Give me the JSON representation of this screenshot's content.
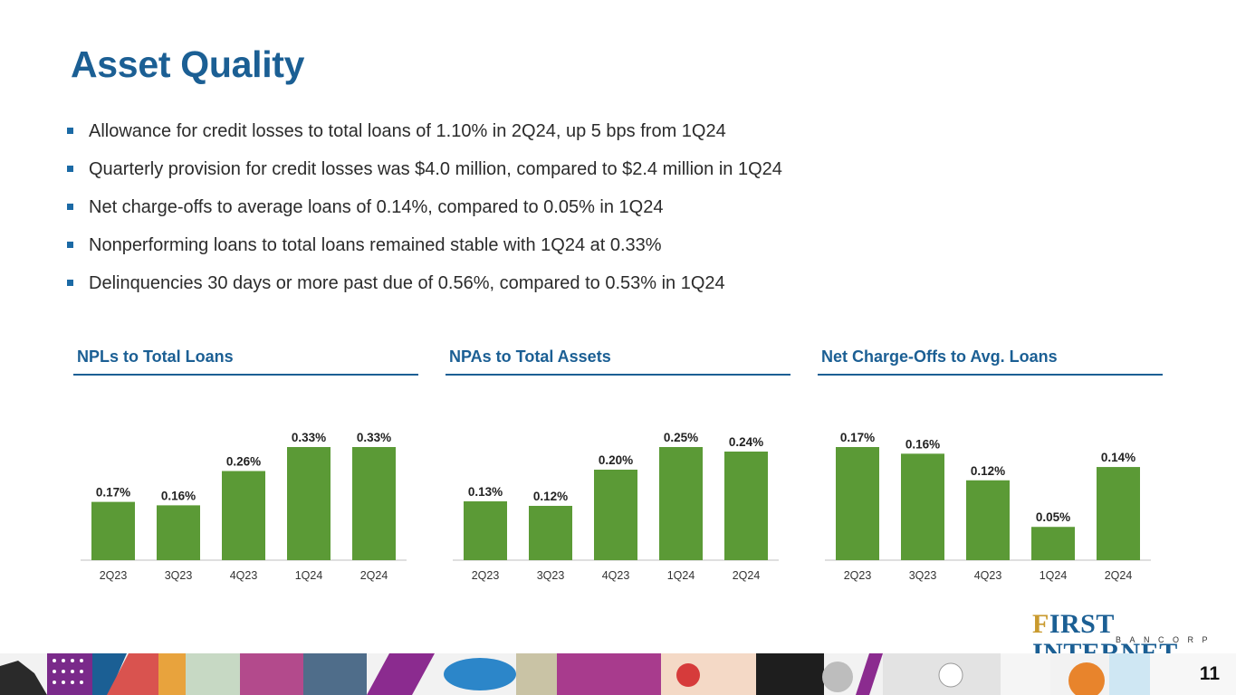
{
  "title": "Asset Quality",
  "bullets": [
    "Allowance for credit losses to total loans of 1.10% in 2Q24, up 5 bps from 1Q24",
    "Quarterly provision for credit losses was $4.0 million, compared to $2.4 million in 1Q24",
    "Net charge-offs to average loans of 0.14%, compared to 0.05% in 1Q24",
    "Nonperforming loans to total loans remained stable with 1Q24 at 0.33%",
    "Delinquencies 30 days or more past due of 0.56%, compared to 0.53% in 1Q24"
  ],
  "chart_data": [
    {
      "type": "bar",
      "title": "NPLs to Total Loans",
      "categories": [
        "2Q23",
        "3Q23",
        "4Q23",
        "1Q24",
        "2Q24"
      ],
      "values": [
        0.17,
        0.16,
        0.26,
        0.33,
        0.33
      ],
      "labels": [
        "0.17%",
        "0.16%",
        "0.26%",
        "0.33%",
        "0.33%"
      ],
      "ylim": [
        0,
        0.33
      ],
      "color": "#5b9a36"
    },
    {
      "type": "bar",
      "title": "NPAs to Total Assets",
      "categories": [
        "2Q23",
        "3Q23",
        "4Q23",
        "1Q24",
        "2Q24"
      ],
      "values": [
        0.13,
        0.12,
        0.2,
        0.25,
        0.24
      ],
      "labels": [
        "0.13%",
        "0.12%",
        "0.20%",
        "0.25%",
        "0.24%"
      ],
      "ylim": [
        0,
        0.25
      ],
      "color": "#5b9a36"
    },
    {
      "type": "bar",
      "title": "Net Charge-Offs to Avg. Loans",
      "categories": [
        "2Q23",
        "3Q23",
        "4Q23",
        "1Q24",
        "2Q24"
      ],
      "values": [
        0.17,
        0.16,
        0.12,
        0.05,
        0.14
      ],
      "labels": [
        "0.17%",
        "0.16%",
        "0.12%",
        "0.05%",
        "0.14%"
      ],
      "ylim": [
        0,
        0.17
      ],
      "color": "#5b9a36"
    }
  ],
  "logo": {
    "first": "F",
    "rest": "IRST INTERNET",
    "sub": "BANCORP"
  },
  "page_number": "11",
  "colors": {
    "brand_blue": "#1b5f94",
    "bar_green": "#5b9a36",
    "bullet_blue": "#1b6aa5",
    "logo_gold": "#c99a2e"
  }
}
